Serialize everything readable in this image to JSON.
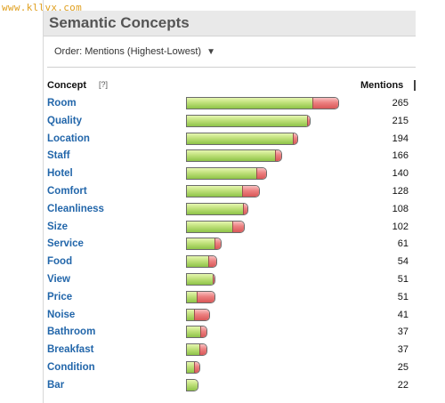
{
  "watermark": "www.kllvx.com",
  "panel": {
    "title": "Semantic Concepts",
    "order_label": "Order: Mentions (Highest-Lowest)",
    "order_arrow": "▼",
    "concept_header": "Concept",
    "help_link": "[?]",
    "mentions_header": "Mentions"
  },
  "colors": {
    "positive": "#9fd05a",
    "negative": "#e67070",
    "link": "#2266aa"
  },
  "chart_data": {
    "type": "bar",
    "max_mentions": 265,
    "rows": [
      {
        "concept": "Room",
        "mentions": 265,
        "positive_fraction": 0.83
      },
      {
        "concept": "Quality",
        "mentions": 215,
        "positive_fraction": 0.98
      },
      {
        "concept": "Location",
        "mentions": 194,
        "positive_fraction": 0.96
      },
      {
        "concept": "Staff",
        "mentions": 166,
        "positive_fraction": 0.93
      },
      {
        "concept": "Hotel",
        "mentions": 140,
        "positive_fraction": 0.88
      },
      {
        "concept": "Comfort",
        "mentions": 128,
        "positive_fraction": 0.77
      },
      {
        "concept": "Cleanliness",
        "mentions": 108,
        "positive_fraction": 0.92
      },
      {
        "concept": "Size",
        "mentions": 102,
        "positive_fraction": 0.79
      },
      {
        "concept": "Service",
        "mentions": 61,
        "positive_fraction": 0.82
      },
      {
        "concept": "Food",
        "mentions": 54,
        "positive_fraction": 0.72
      },
      {
        "concept": "View",
        "mentions": 51,
        "positive_fraction": 0.95
      },
      {
        "concept": "Price",
        "mentions": 51,
        "positive_fraction": 0.37
      },
      {
        "concept": "Noise",
        "mentions": 41,
        "positive_fraction": 0.3
      },
      {
        "concept": "Bathroom",
        "mentions": 37,
        "positive_fraction": 0.68
      },
      {
        "concept": "Breakfast",
        "mentions": 37,
        "positive_fraction": 0.62
      },
      {
        "concept": "Condition",
        "mentions": 25,
        "positive_fraction": 0.55
      },
      {
        "concept": "Bar",
        "mentions": 22,
        "positive_fraction": 1.0
      }
    ]
  }
}
